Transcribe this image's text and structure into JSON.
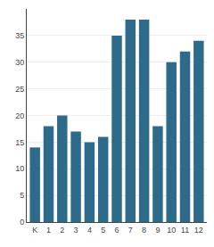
{
  "chart_data": {
    "type": "bar",
    "categories": [
      "K",
      "1",
      "2",
      "3",
      "4",
      "5",
      "6",
      "7",
      "8",
      "9",
      "10",
      "11",
      "12"
    ],
    "values": [
      14,
      18,
      20,
      17,
      15,
      16,
      35,
      38,
      38,
      18,
      30,
      32,
      34
    ],
    "color": "#2e6b8a",
    "ylim": [
      0,
      40
    ],
    "yticks": [
      0,
      5,
      10,
      15,
      20,
      25,
      30,
      35
    ],
    "grid": true
  }
}
